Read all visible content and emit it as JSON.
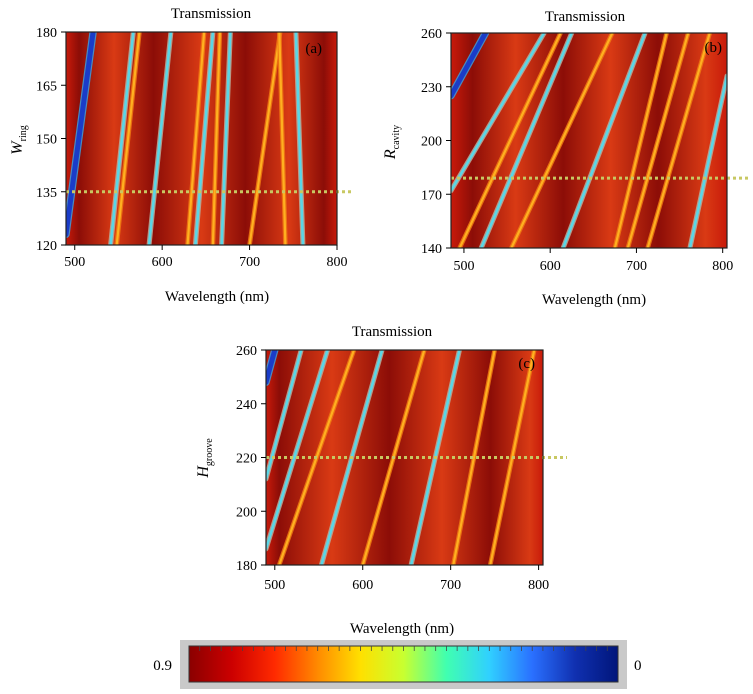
{
  "chart_data": [
    {
      "panel": "a",
      "type": "heatmap",
      "title": "Transmission",
      "panel_label": "(a)",
      "xlabel": "Wavelength (nm)",
      "ylabel": {
        "main": "W",
        "sub": "ring"
      },
      "xlim": [
        490,
        800
      ],
      "ylim": [
        120,
        180
      ],
      "xticks": [
        500,
        600,
        700,
        800
      ],
      "yticks": [
        120,
        135,
        150,
        165,
        180
      ],
      "reference_line_y": 135,
      "background_bands_x": [
        505,
        545,
        590,
        645,
        695,
        745,
        785
      ],
      "resonance_lines": [
        {
          "x0": 490,
          "y0": 123,
          "x1": 521,
          "y1": 180,
          "color": "blue"
        },
        {
          "x0": 541,
          "y0": 120,
          "x1": 567,
          "y1": 180,
          "color": "cyan"
        },
        {
          "x0": 548,
          "y0": 120,
          "x1": 574,
          "y1": 180,
          "color": "orange"
        },
        {
          "x0": 585,
          "y0": 120,
          "x1": 610,
          "y1": 180,
          "color": "cyan"
        },
        {
          "x0": 629,
          "y0": 120,
          "x1": 648,
          "y1": 180,
          "color": "orange"
        },
        {
          "x0": 638,
          "y0": 120,
          "x1": 658,
          "y1": 180,
          "color": "cyan"
        },
        {
          "x0": 658,
          "y0": 120,
          "x1": 666,
          "y1": 180,
          "color": "orange"
        },
        {
          "x0": 668,
          "y0": 120,
          "x1": 678,
          "y1": 180,
          "color": "cyan"
        },
        {
          "x0": 700,
          "y0": 120,
          "x1": 735,
          "y1": 180,
          "color": "orange"
        },
        {
          "x0": 741,
          "y0": 120,
          "x1": 734,
          "y1": 180,
          "color": "orange"
        },
        {
          "x0": 761,
          "y0": 120,
          "x1": 753,
          "y1": 180,
          "color": "cyan"
        }
      ]
    },
    {
      "panel": "b",
      "type": "heatmap",
      "title": "Transmission",
      "panel_label": "(b)",
      "xlabel": "Wavelength (nm)",
      "ylabel": {
        "main": "R",
        "sub": "cavity"
      },
      "xlim": [
        485,
        805
      ],
      "ylim": [
        140,
        260
      ],
      "xticks": [
        500,
        600,
        700,
        800
      ],
      "yticks": [
        140,
        170,
        200,
        230,
        260
      ],
      "reference_line_y": 179,
      "background_bands_x": [
        510,
        560,
        615,
        670,
        725,
        780
      ],
      "resonance_lines": [
        {
          "x0": 485,
          "y0": 225,
          "x1": 525,
          "y1": 260,
          "color": "blue"
        },
        {
          "x0": 485,
          "y0": 172,
          "x1": 593,
          "y1": 260,
          "color": "cyan"
        },
        {
          "x0": 495,
          "y0": 140,
          "x1": 612,
          "y1": 260,
          "color": "orange"
        },
        {
          "x0": 520,
          "y0": 140,
          "x1": 625,
          "y1": 260,
          "color": "cyan"
        },
        {
          "x0": 555,
          "y0": 140,
          "x1": 672,
          "y1": 260,
          "color": "orange"
        },
        {
          "x0": 615,
          "y0": 140,
          "x1": 710,
          "y1": 260,
          "color": "cyan"
        },
        {
          "x0": 675,
          "y0": 140,
          "x1": 735,
          "y1": 260,
          "color": "orange"
        },
        {
          "x0": 690,
          "y0": 140,
          "x1": 760,
          "y1": 260,
          "color": "orange"
        },
        {
          "x0": 713,
          "y0": 140,
          "x1": 785,
          "y1": 260,
          "color": "orange"
        },
        {
          "x0": 762,
          "y0": 140,
          "x1": 805,
          "y1": 236,
          "color": "cyan"
        }
      ]
    },
    {
      "panel": "c",
      "type": "heatmap",
      "title": "Transmission",
      "panel_label": "(c)",
      "xlabel": "Wavelength (nm)",
      "ylabel": {
        "main": "H",
        "sub": "groove"
      },
      "xlim": [
        490,
        805
      ],
      "ylim": [
        180,
        260
      ],
      "xticks": [
        500,
        600,
        700,
        800
      ],
      "yticks": [
        180,
        200,
        220,
        240,
        260
      ],
      "reference_line_y": 220,
      "background_bands_x": [
        505,
        565,
        630,
        690,
        745,
        790
      ],
      "resonance_lines": [
        {
          "x0": 490,
          "y0": 248,
          "x1": 500,
          "y1": 260,
          "color": "blue"
        },
        {
          "x0": 490,
          "y0": 212,
          "x1": 530,
          "y1": 260,
          "color": "cyan"
        },
        {
          "x0": 490,
          "y0": 186,
          "x1": 560,
          "y1": 260,
          "color": "cyan"
        },
        {
          "x0": 505,
          "y0": 180,
          "x1": 590,
          "y1": 260,
          "color": "orange"
        },
        {
          "x0": 553,
          "y0": 180,
          "x1": 622,
          "y1": 260,
          "color": "cyan"
        },
        {
          "x0": 600,
          "y0": 180,
          "x1": 670,
          "y1": 260,
          "color": "orange"
        },
        {
          "x0": 655,
          "y0": 180,
          "x1": 710,
          "y1": 260,
          "color": "cyan"
        },
        {
          "x0": 703,
          "y0": 180,
          "x1": 750,
          "y1": 260,
          "color": "orange"
        },
        {
          "x0": 745,
          "y0": 180,
          "x1": 795,
          "y1": 260,
          "color": "orange"
        }
      ]
    }
  ],
  "colorbar": {
    "label": "Wavelength (nm)",
    "min_label": "0.9",
    "max_label": "0",
    "stops": [
      "#8a0000",
      "#cc0000",
      "#ff2a00",
      "#ff8a00",
      "#ffe000",
      "#c8ff30",
      "#40ffb0",
      "#30d0ff",
      "#2a70ff",
      "#1030b0",
      "#00157a"
    ]
  },
  "colors": {
    "heat_dark": "#8c0d07",
    "heat_mid": "#c81a0a",
    "heat_light": "#d93a14",
    "reference_line": "#c8c862",
    "blue": "#1a3cc8",
    "cyan": "#5ad6e6",
    "orange": "#ffb020"
  }
}
